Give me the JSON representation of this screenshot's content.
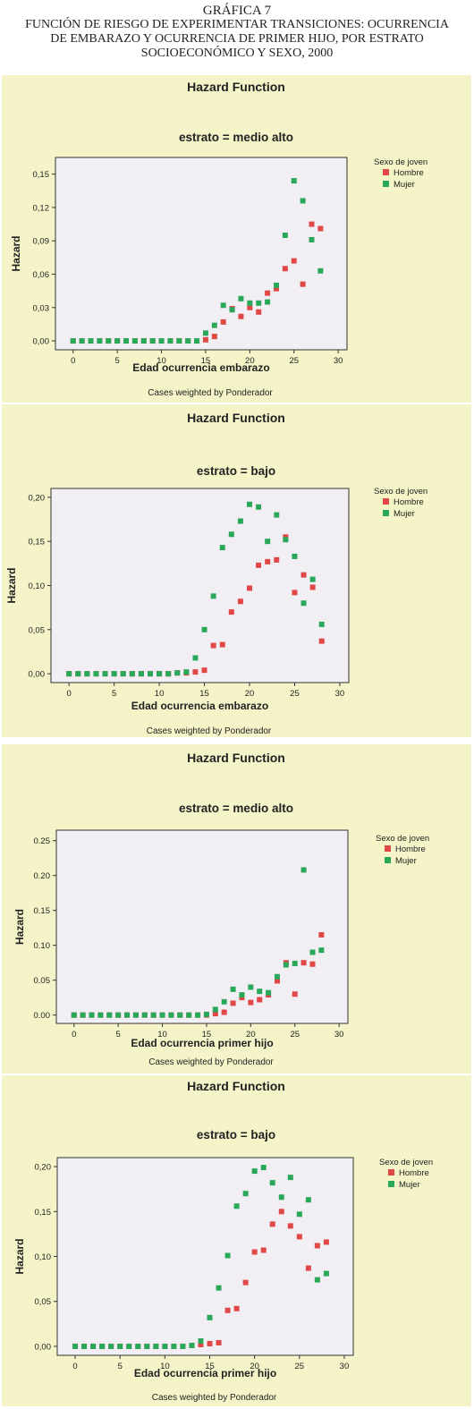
{
  "figure": {
    "label": "GRÁFICA 7",
    "caption_lines": [
      "FUNCIÓN DE RIESGO DE EXPERIMENTAR TRANSICIONES: OCURRENCIA",
      "DE EMBARAZO Y OCURRENCIA DE PRIMER HIJO, POR ESTRATO",
      "SOCIOECONÓMICO Y SEXO, 2000"
    ]
  },
  "chart_data": [
    {
      "type": "scatter",
      "title": "Hazard Function",
      "subtitle": "estrato = medio alto",
      "xlabel": "Edad ocurrencia embarazo",
      "ylabel": "Hazard",
      "footnote": "Cases weighted by Ponderador",
      "xlim": [
        -2,
        31
      ],
      "ylim": [
        -0.008,
        0.165
      ],
      "xticks": [
        0,
        5,
        10,
        15,
        20,
        25,
        30
      ],
      "yticks": [
        0,
        0.03,
        0.06,
        0.09,
        0.12,
        0.15
      ],
      "ytick_labels": [
        "0,00",
        "0,03",
        "0,06",
        "0,09",
        "0,12",
        "0,15"
      ],
      "legend_title": "Sexo de joven",
      "grid": false,
      "series": [
        {
          "name": "Hombre",
          "color": "#e04848",
          "x": [
            0,
            1,
            2,
            3,
            4,
            5,
            6,
            7,
            8,
            9,
            10,
            11,
            12,
            13,
            14,
            15,
            16,
            17,
            18,
            19,
            20,
            21,
            22,
            23,
            24,
            25,
            26,
            27,
            28
          ],
          "y": [
            0,
            0,
            0,
            0,
            0,
            0,
            0,
            0,
            0,
            0,
            0,
            0,
            0,
            0,
            0,
            0.001,
            0.004,
            0.017,
            0.029,
            0.022,
            0.03,
            0.026,
            0.043,
            0.047,
            0.065,
            0.072,
            0.051,
            0.105,
            0.101
          ]
        },
        {
          "name": "Mujer",
          "color": "#2aa85a",
          "x": [
            0,
            1,
            2,
            3,
            4,
            5,
            6,
            7,
            8,
            9,
            10,
            11,
            12,
            13,
            14,
            15,
            16,
            17,
            18,
            19,
            20,
            21,
            22,
            23,
            24,
            25,
            26,
            27,
            28
          ],
          "y": [
            0,
            0,
            0,
            0,
            0,
            0,
            0,
            0,
            0,
            0,
            0,
            0,
            0,
            0,
            0,
            0.007,
            0.014,
            0.032,
            0.028,
            0.038,
            0.034,
            0.034,
            0.035,
            0.05,
            0.095,
            0.144,
            0.126,
            0.091,
            0.063
          ]
        }
      ]
    },
    {
      "type": "scatter",
      "title": "Hazard Function",
      "subtitle": "estrato = bajo",
      "xlabel": "Edad ocurrencia embarazo",
      "ylabel": "Hazard",
      "footnote": "Cases weighted by Ponderador",
      "xlim": [
        -2,
        31
      ],
      "ylim": [
        -0.01,
        0.21
      ],
      "xticks": [
        0,
        5,
        10,
        15,
        20,
        25,
        30
      ],
      "yticks": [
        0,
        0.05,
        0.1,
        0.15,
        0.2
      ],
      "ytick_labels": [
        "0,00",
        "0,05",
        "0,10",
        "0,15",
        "0,20"
      ],
      "legend_title": "Sexo de joven",
      "grid": false,
      "series": [
        {
          "name": "Hombre",
          "color": "#e04848",
          "x": [
            0,
            1,
            2,
            3,
            4,
            5,
            6,
            7,
            8,
            9,
            10,
            11,
            12,
            13,
            14,
            15,
            16,
            17,
            18,
            19,
            20,
            21,
            22,
            23,
            24,
            25,
            26,
            27,
            28
          ],
          "y": [
            0,
            0,
            0,
            0,
            0,
            0,
            0,
            0,
            0,
            0,
            0,
            0,
            0.001,
            0.001,
            0.002,
            0.004,
            0.032,
            0.033,
            0.07,
            0.082,
            0.097,
            0.123,
            0.127,
            0.129,
            0.155,
            0.092,
            0.112,
            0.098,
            0.037
          ]
        },
        {
          "name": "Mujer",
          "color": "#2aa85a",
          "x": [
            0,
            1,
            2,
            3,
            4,
            5,
            6,
            7,
            8,
            9,
            10,
            11,
            12,
            13,
            14,
            15,
            16,
            17,
            18,
            19,
            20,
            21,
            22,
            23,
            24,
            25,
            26,
            27,
            28
          ],
          "y": [
            0,
            0,
            0,
            0,
            0,
            0,
            0,
            0,
            0,
            0,
            0,
            0,
            0.001,
            0.002,
            0.018,
            0.05,
            0.088,
            0.143,
            0.158,
            0.173,
            0.192,
            0.189,
            0.15,
            0.18,
            0.152,
            0.133,
            0.08,
            0.107,
            0.056
          ]
        }
      ]
    },
    {
      "type": "scatter",
      "title": "Hazard Function",
      "subtitle": "estrato = medio alto",
      "xlabel": "Edad ocurrencia primer hijo",
      "ylabel": "Hazard",
      "footnote": "Cases weighted by Ponderador",
      "xlim": [
        -2,
        31
      ],
      "ylim": [
        -0.012,
        0.265
      ],
      "xticks": [
        0,
        5,
        10,
        15,
        20,
        25,
        30
      ],
      "yticks": [
        0,
        0.05,
        0.1,
        0.15,
        0.2,
        0.25
      ],
      "ytick_labels": [
        "0.00",
        "0.05",
        "0.10",
        "0.15",
        "0.20",
        "0.25"
      ],
      "legend_title": "Sexo de joven",
      "grid": false,
      "series": [
        {
          "name": "Hombre",
          "color": "#e04848",
          "x": [
            0,
            1,
            2,
            3,
            4,
            5,
            6,
            7,
            8,
            9,
            10,
            11,
            12,
            13,
            14,
            15,
            16,
            17,
            18,
            19,
            20,
            21,
            22,
            23,
            24,
            25,
            26,
            27,
            28
          ],
          "y": [
            0,
            0,
            0,
            0,
            0,
            0,
            0,
            0,
            0,
            0,
            0,
            0,
            0,
            0,
            0,
            0,
            0.002,
            0.004,
            0.017,
            0.025,
            0.018,
            0.022,
            0.029,
            0.049,
            0.075,
            0.03,
            0.075,
            0.073,
            0.115
          ]
        },
        {
          "name": "Mujer",
          "color": "#2aa85a",
          "x": [
            0,
            1,
            2,
            3,
            4,
            5,
            6,
            7,
            8,
            9,
            10,
            11,
            12,
            13,
            14,
            15,
            16,
            17,
            18,
            19,
            20,
            21,
            22,
            23,
            24,
            25,
            26,
            27,
            28
          ],
          "y": [
            0,
            0,
            0,
            0,
            0,
            0,
            0,
            0,
            0,
            0,
            0,
            0,
            0,
            0,
            0,
            0.001,
            0.008,
            0.019,
            0.037,
            0.029,
            0.04,
            0.034,
            0.032,
            0.055,
            0.072,
            0.074,
            0.208,
            0.09,
            0.093
          ]
        }
      ]
    },
    {
      "type": "scatter",
      "title": "Hazard Function",
      "subtitle": "estrato = bajo",
      "xlabel": "Edad ocurrencia primer hijo",
      "ylabel": "Hazard",
      "footnote": "Cases weighted by Ponderador",
      "xlim": [
        -2,
        31
      ],
      "ylim": [
        -0.01,
        0.21
      ],
      "xticks": [
        0,
        5,
        10,
        15,
        20,
        25,
        30
      ],
      "yticks": [
        0,
        0.05,
        0.1,
        0.15,
        0.2
      ],
      "ytick_labels": [
        "0,00",
        "0,05",
        "0,10",
        "0,15",
        "0,20"
      ],
      "legend_title": "Sexo de joven",
      "grid": false,
      "series": [
        {
          "name": "Hombre",
          "color": "#e04848",
          "x": [
            0,
            1,
            2,
            3,
            4,
            5,
            6,
            7,
            8,
            9,
            10,
            11,
            12,
            13,
            14,
            15,
            16,
            17,
            18,
            19,
            20,
            21,
            22,
            23,
            24,
            25,
            26,
            27,
            28
          ],
          "y": [
            0,
            0,
            0,
            0,
            0,
            0,
            0,
            0,
            0,
            0,
            0,
            0,
            0,
            0.001,
            0.002,
            0.003,
            0.004,
            0.04,
            0.042,
            0.071,
            0.105,
            0.107,
            0.136,
            0.15,
            0.134,
            0.122,
            0.087,
            0.112,
            0.116
          ]
        },
        {
          "name": "Mujer",
          "color": "#2aa85a",
          "x": [
            0,
            1,
            2,
            3,
            4,
            5,
            6,
            7,
            8,
            9,
            10,
            11,
            12,
            13,
            14,
            15,
            16,
            17,
            18,
            19,
            20,
            21,
            22,
            23,
            24,
            25,
            26,
            27,
            28
          ],
          "y": [
            0,
            0,
            0,
            0,
            0,
            0,
            0,
            0,
            0,
            0,
            0,
            0,
            0,
            0.001,
            0.006,
            0.032,
            0.065,
            0.101,
            0.156,
            0.17,
            0.195,
            0.199,
            0.182,
            0.166,
            0.188,
            0.147,
            0.163,
            0.074,
            0.081
          ]
        }
      ]
    }
  ]
}
